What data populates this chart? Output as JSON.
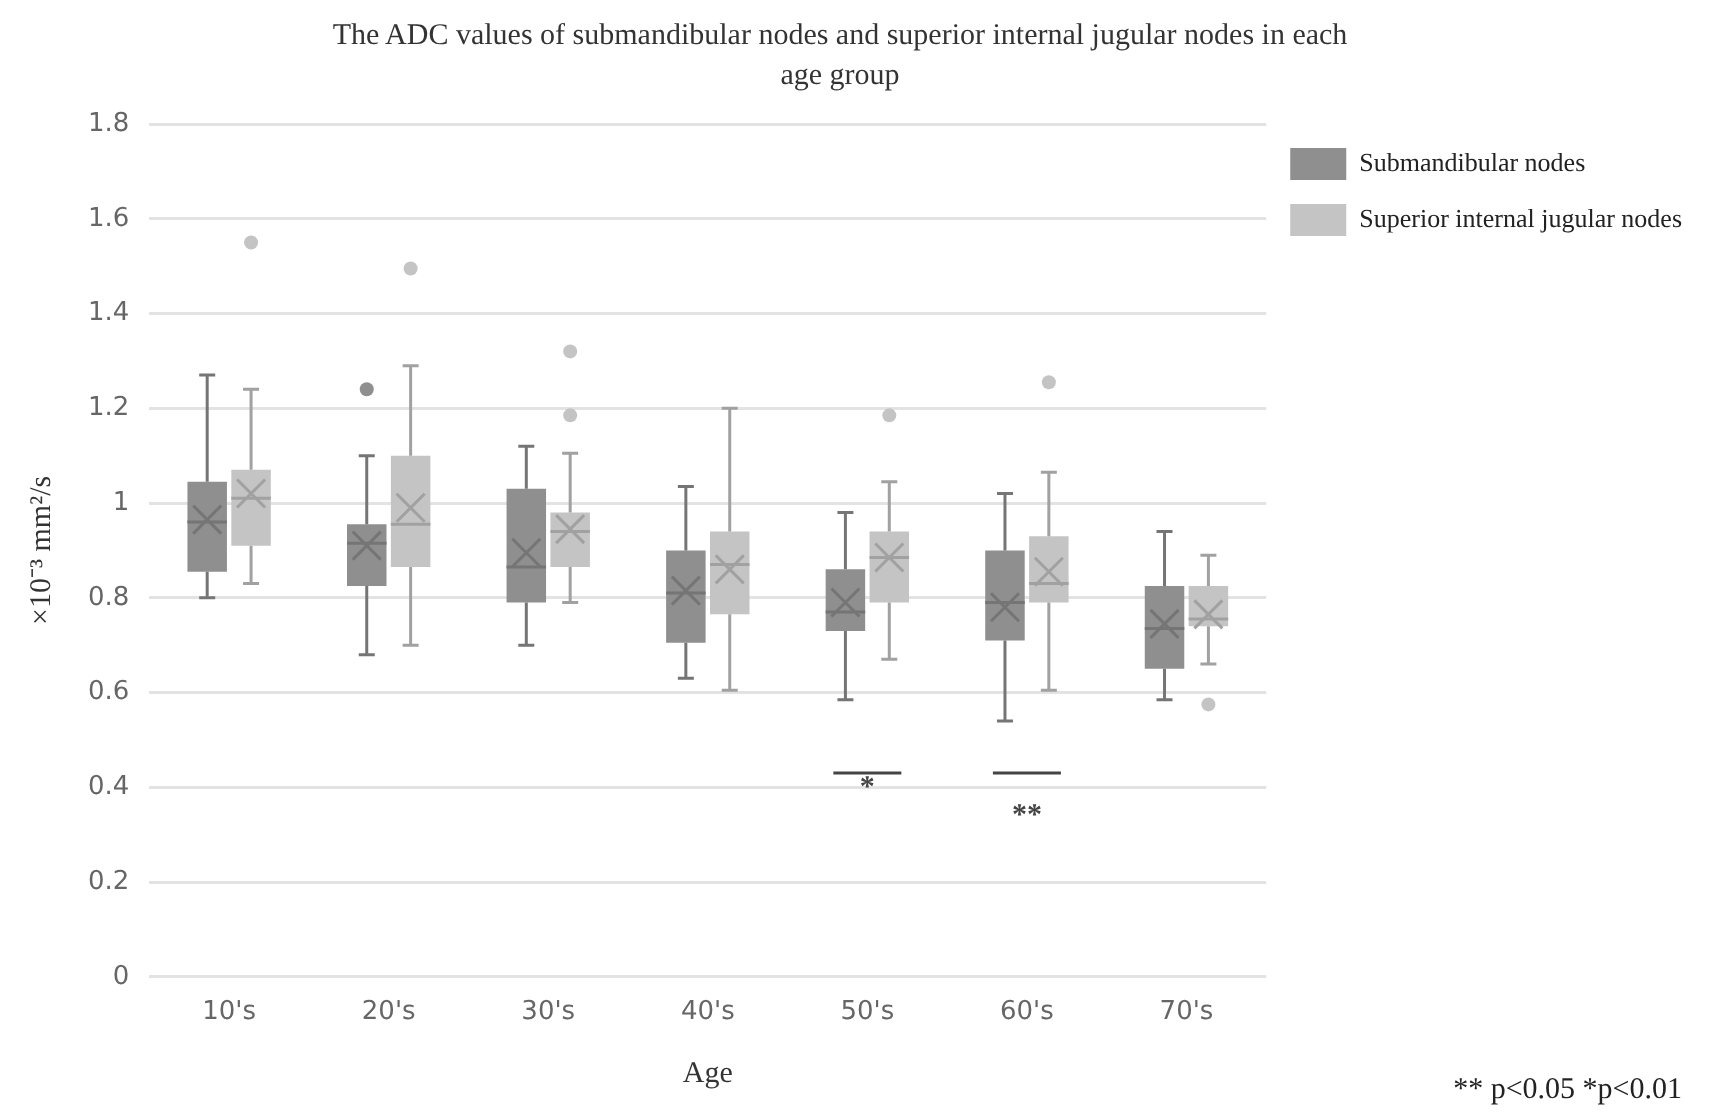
{
  "chart_data": {
    "type": "box",
    "title": "The ADC values of submandibular nodes and superior internal jugular nodes in each age group",
    "xlabel": "Age",
    "ylabel": "×10⁻³ mm²/s",
    "categories": [
      "10's",
      "20's",
      "30's",
      "40's",
      "50's",
      "60's",
      "70's"
    ],
    "series": [
      {
        "name": "Submandibular nodes",
        "color": "#8f8f8f",
        "boxes": [
          {
            "low": 0.8,
            "q1": 0.855,
            "median": 0.96,
            "q3": 1.045,
            "high": 1.27,
            "mean": 0.965
          },
          {
            "low": 0.68,
            "q1": 0.825,
            "median": 0.915,
            "q3": 0.955,
            "high": 1.1,
            "mean": 0.91,
            "outliers": [
              1.24
            ]
          },
          {
            "low": 0.7,
            "q1": 0.79,
            "median": 0.865,
            "q3": 1.03,
            "high": 1.12,
            "mean": 0.895
          },
          {
            "low": 0.63,
            "q1": 0.705,
            "median": 0.81,
            "q3": 0.9,
            "high": 1.035,
            "mean": 0.815
          },
          {
            "low": 0.585,
            "q1": 0.73,
            "median": 0.77,
            "q3": 0.86,
            "high": 0.98,
            "mean": 0.79
          },
          {
            "low": 0.54,
            "q1": 0.71,
            "median": 0.79,
            "q3": 0.9,
            "high": 1.02,
            "mean": 0.78
          },
          {
            "low": 0.585,
            "q1": 0.65,
            "median": 0.735,
            "q3": 0.825,
            "high": 0.94,
            "mean": 0.745
          }
        ]
      },
      {
        "name": "Superior internal jugular nodes",
        "color": "#c4c4c4",
        "boxes": [
          {
            "low": 0.83,
            "q1": 0.91,
            "median": 1.01,
            "q3": 1.07,
            "high": 1.24,
            "mean": 1.02,
            "outliers": [
              1.55
            ]
          },
          {
            "low": 0.7,
            "q1": 0.865,
            "median": 0.955,
            "q3": 1.1,
            "high": 1.29,
            "mean": 0.99,
            "outliers": [
              1.495
            ]
          },
          {
            "low": 0.79,
            "q1": 0.865,
            "median": 0.94,
            "q3": 0.98,
            "high": 1.105,
            "mean": 0.945,
            "outliers": [
              1.32,
              1.185
            ]
          },
          {
            "low": 0.605,
            "q1": 0.765,
            "median": 0.87,
            "q3": 0.94,
            "high": 1.2,
            "mean": 0.86
          },
          {
            "low": 0.67,
            "q1": 0.79,
            "median": 0.885,
            "q3": 0.94,
            "high": 1.045,
            "mean": 0.885,
            "outliers": [
              1.185
            ]
          },
          {
            "low": 0.605,
            "q1": 0.79,
            "median": 0.83,
            "q3": 0.93,
            "high": 1.065,
            "mean": 0.855,
            "outliers": [
              1.255
            ]
          },
          {
            "low": 0.66,
            "q1": 0.74,
            "median": 0.755,
            "q3": 0.825,
            "high": 0.89,
            "mean": 0.765,
            "outliers": [
              0.575
            ]
          }
        ]
      }
    ],
    "ylim": [
      0,
      1.8
    ],
    "yticks": [
      0,
      0.2,
      0.4,
      0.6,
      0.8,
      1,
      1.2,
      1.4,
      1.6,
      1.8
    ],
    "grid": "y",
    "legend": "top right",
    "annotations": [
      "*",
      "**",
      "** p<0.05 *p<0.01"
    ]
  }
}
